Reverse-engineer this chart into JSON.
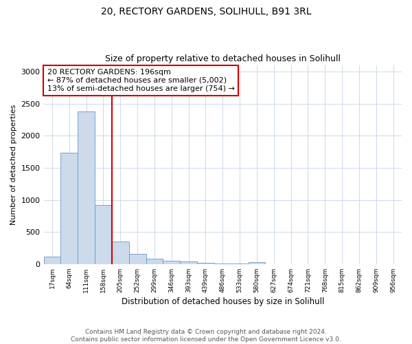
{
  "title": "20, RECTORY GARDENS, SOLIHULL, B91 3RL",
  "subtitle": "Size of property relative to detached houses in Solihull",
  "xlabel": "Distribution of detached houses by size in Solihull",
  "ylabel": "Number of detached properties",
  "categories": [
    "17sqm",
    "64sqm",
    "111sqm",
    "158sqm",
    "205sqm",
    "252sqm",
    "299sqm",
    "346sqm",
    "393sqm",
    "439sqm",
    "486sqm",
    "533sqm",
    "580sqm",
    "627sqm",
    "674sqm",
    "721sqm",
    "768sqm",
    "815sqm",
    "862sqm",
    "909sqm",
    "956sqm"
  ],
  "values": [
    120,
    1730,
    2380,
    920,
    350,
    155,
    85,
    55,
    40,
    15,
    10,
    8,
    30,
    0,
    0,
    0,
    0,
    0,
    0,
    0,
    0
  ],
  "bar_color": "#ccdaeb",
  "bar_edge_color": "#6699cc",
  "vline_x_index": 4,
  "vline_color": "#cc0000",
  "annotation_text": "20 RECTORY GARDENS: 196sqm\n← 87% of detached houses are smaller (5,002)\n13% of semi-detached houses are larger (754) →",
  "annotation_box_color": "#ffffff",
  "annotation_box_edge_color": "#cc0000",
  "ylim": [
    0,
    3100
  ],
  "yticks": [
    0,
    500,
    1000,
    1500,
    2000,
    2500,
    3000
  ],
  "background_color": "#ffffff",
  "grid_color": "#ccd8e8",
  "footer_line1": "Contains HM Land Registry data © Crown copyright and database right 2024.",
  "footer_line2": "Contains public sector information licensed under the Open Government Licence v3.0.",
  "title_fontsize": 10,
  "subtitle_fontsize": 9,
  "xlabel_fontsize": 8.5,
  "ylabel_fontsize": 8,
  "annot_fontsize": 8,
  "footer_fontsize": 6.5
}
